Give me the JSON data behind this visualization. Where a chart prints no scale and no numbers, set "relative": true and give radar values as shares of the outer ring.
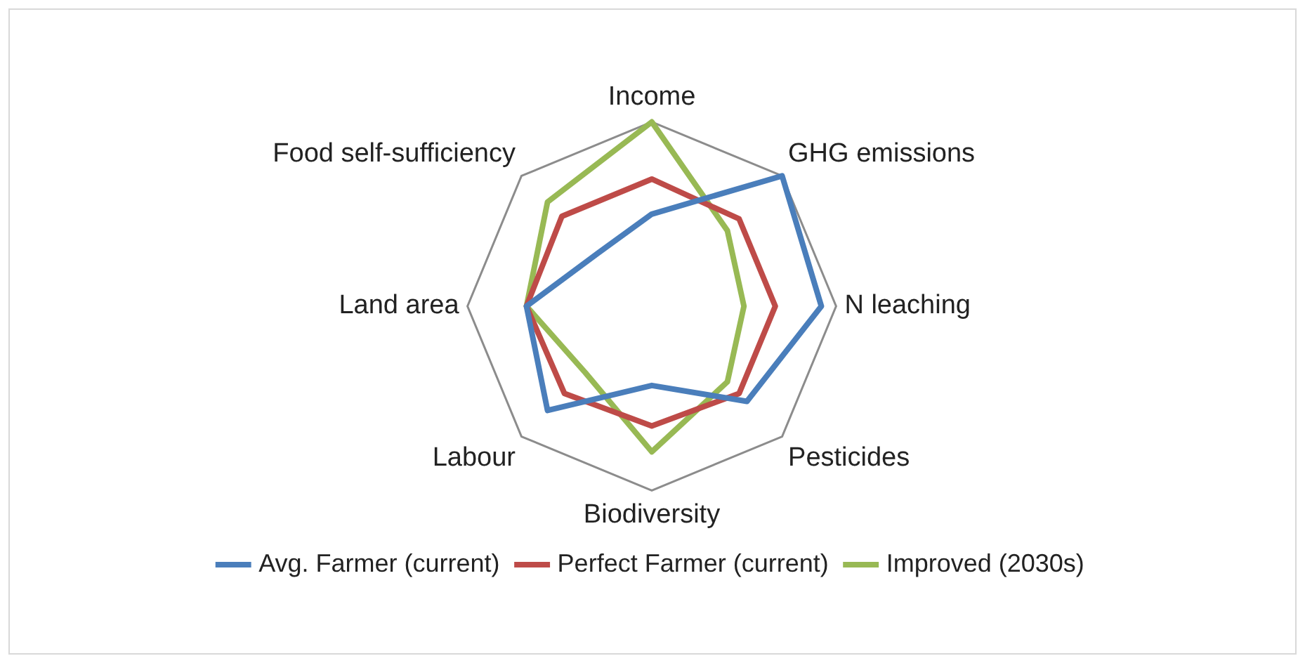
{
  "chart_data": {
    "type": "radar",
    "relative": true,
    "grid": true,
    "legend": "bottom",
    "marker": "none",
    "line_style": "solid",
    "categories": [
      "Income",
      "GHG emissions",
      "N leaching",
      "Pesticides",
      "Biodiversity",
      "Labour",
      "Land area",
      "Food self-sufficiency"
    ],
    "series": [
      {
        "name": "Avg. Farmer (current)",
        "color": "#4a7ebb",
        "values": [
          0.5,
          1.0,
          0.92,
          0.73,
          0.43,
          0.8,
          0.68,
          0.41
        ]
      },
      {
        "name": "Perfect Farmer (current)",
        "color": "#be4b48",
        "values": [
          0.69,
          0.67,
          0.67,
          0.67,
          0.65,
          0.67,
          0.68,
          0.69
        ]
      },
      {
        "name": "Improved (2030s)",
        "color": "#98b954",
        "values": [
          1.0,
          0.58,
          0.5,
          0.58,
          0.79,
          0.51,
          0.68,
          0.8
        ]
      }
    ]
  }
}
